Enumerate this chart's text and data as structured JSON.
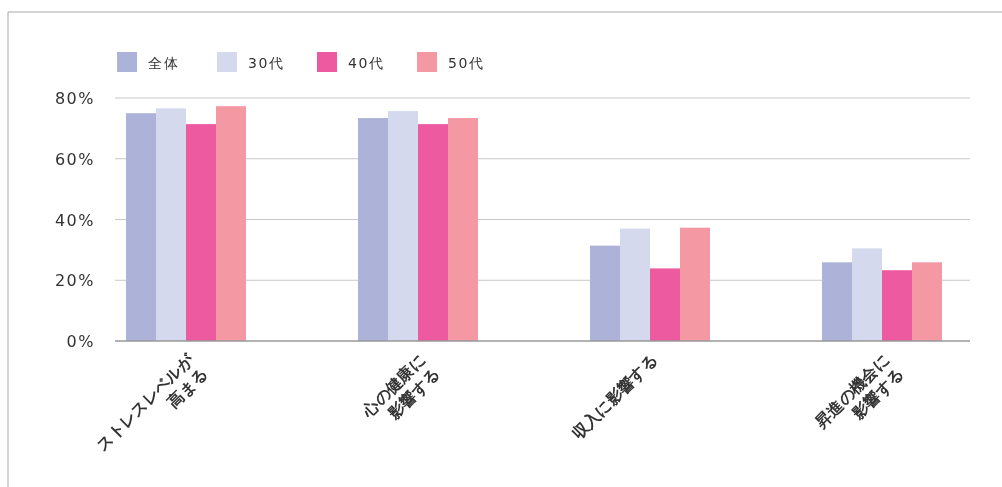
{
  "chart_data": {
    "type": "bar",
    "categories": [
      "ストレスレベルが\n高まる",
      "心の健康に\n影響する",
      "収入に影響する",
      "昇進の機会に\n影響する"
    ],
    "series": [
      {
        "name": "全体",
        "color": "#adb3d8",
        "values": [
          75,
          73.4,
          31.4,
          25.9
        ]
      },
      {
        "name": "30代",
        "color": "#d4d9ed",
        "values": [
          76.6,
          75.7,
          37,
          30.5
        ]
      },
      {
        "name": "40代",
        "color": "#ee5aa0",
        "values": [
          71.4,
          71.4,
          23.9,
          23.3
        ]
      },
      {
        "name": "50代",
        "color": "#f498a4",
        "values": [
          77.3,
          73.4,
          37.3,
          25.9
        ]
      }
    ],
    "ylim": [
      0,
      80
    ],
    "yticks": [
      {
        "value": 0,
        "label": "0%"
      },
      {
        "value": 20,
        "label": "20%"
      },
      {
        "value": 40,
        "label": "40%"
      },
      {
        "value": 60,
        "label": "60%"
      },
      {
        "value": 80,
        "label": "80%"
      }
    ],
    "grid": "y",
    "legend": "top left"
  }
}
